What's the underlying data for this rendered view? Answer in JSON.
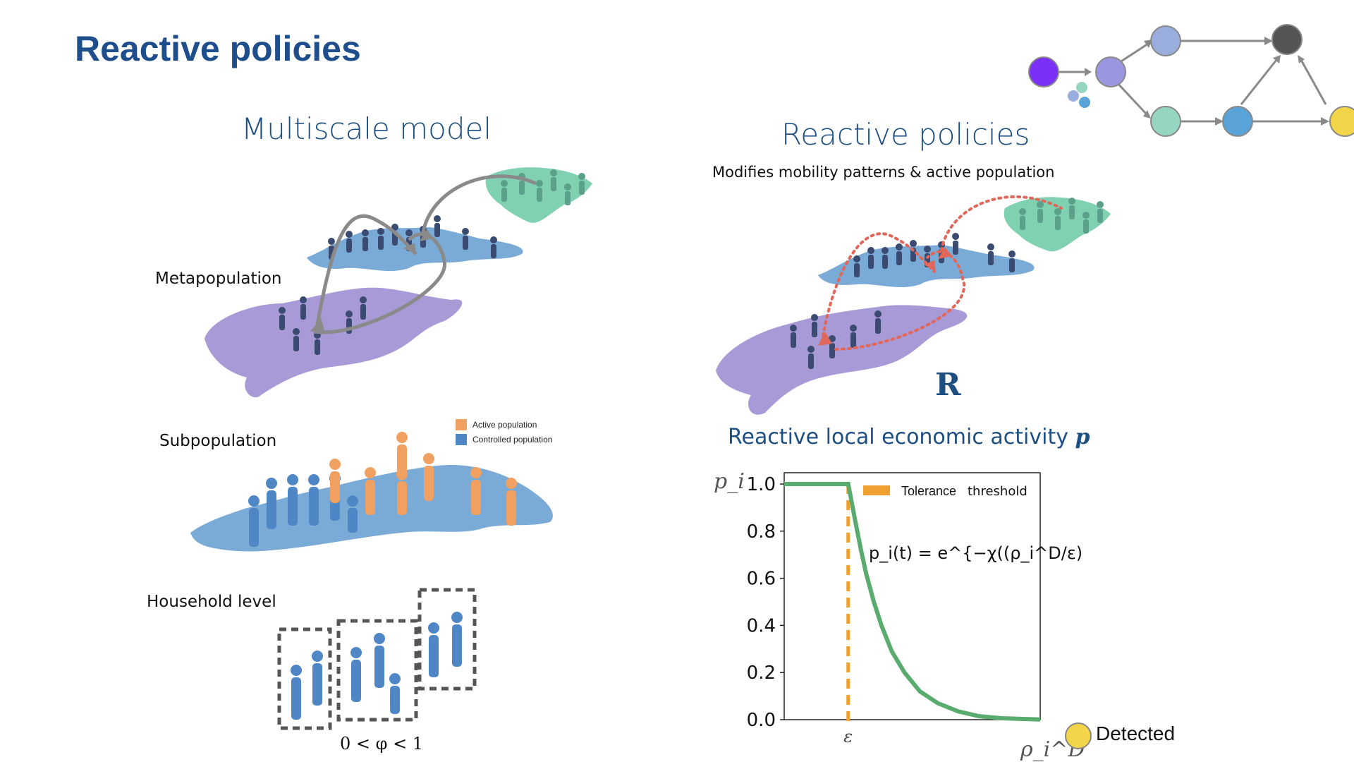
{
  "header": {
    "title": "Reactive policies"
  },
  "left": {
    "title": "Multiscale model",
    "metapopulation_label": "Metapopulation",
    "subpopulation_label": "Subpopulation",
    "household_label": "Household level",
    "legend": [
      {
        "label": "Active population",
        "color": "#f0a060"
      },
      {
        "label": "Controlled population",
        "color": "#4f86c6"
      }
    ],
    "phi_label": "0 < φ < 1"
  },
  "right": {
    "title": "Reactive policies",
    "subtitle": "Modifies mobility patterns & active population",
    "r_label": "R",
    "econ_title": "Reactive local economic activity",
    "econ_symbol": "p"
  },
  "chart_data": {
    "type": "line",
    "ylabel": "p_i",
    "xlabel": "ρ_i^D",
    "ylim": [
      0.0,
      1.0
    ],
    "yticks": [
      "0.0",
      "0.2",
      "0.4",
      "0.6",
      "0.8",
      "1.0"
    ],
    "xtick_labels": [
      "ε"
    ],
    "formula": "p_i(t) = e^{−χ((ρ_i^D/ε) − 1)}",
    "legend": [
      {
        "label_a": "Tolerance",
        "label_b": "threshold",
        "color": "#f0a030"
      }
    ],
    "series": [
      {
        "color": "#5aab6e",
        "x": [
          0,
          0.25,
          0.28,
          0.3,
          0.32,
          0.35,
          0.38,
          0.42,
          0.47,
          0.53,
          0.6,
          0.68,
          0.76,
          0.85,
          1.0
        ],
        "y": [
          1.0,
          1.0,
          0.83,
          0.72,
          0.62,
          0.5,
          0.4,
          0.29,
          0.2,
          0.12,
          0.07,
          0.035,
          0.015,
          0.006,
          0.001
        ]
      }
    ],
    "threshold_x": 0.25
  },
  "network": {
    "colors": [
      "#7b2ff7",
      "#9b96e0",
      "#9aaedd",
      "#555555",
      "#96d5c2",
      "#5aa3d8",
      "#f3d54a"
    ]
  },
  "detected": {
    "label": "Detected",
    "color": "#f3d54a"
  },
  "colors": {
    "title": "#1f4e8c",
    "purple_region": "#a79ad6",
    "blue_region": "#7aaad6",
    "green_region": "#7fd1b1",
    "people_dark": "#3a4a70",
    "people_blue": "#4f86c6",
    "people_orange": "#f0a060",
    "people_green": "#5aa08a",
    "flow_gray": "#8a8a8a",
    "flow_red": "#e0675a"
  }
}
